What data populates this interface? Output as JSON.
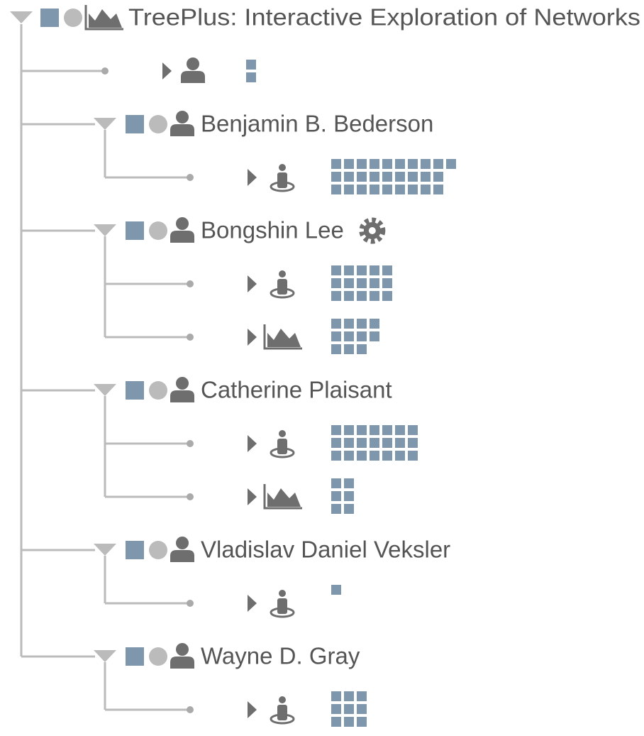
{
  "root": {
    "title": "TreePlus: Interactive Exploration of Networks",
    "icon": "chart",
    "children": [
      {
        "icon": "person",
        "count": 2
      },
      {
        "name": "Benjamin B. Bederson",
        "children": [
          {
            "icon": "pin",
            "count": 28
          }
        ]
      },
      {
        "name": "Bongshin Lee",
        "gear": true,
        "children": [
          {
            "icon": "pin",
            "count": 15
          },
          {
            "icon": "chart",
            "count": 11
          }
        ]
      },
      {
        "name": "Catherine Plaisant",
        "children": [
          {
            "icon": "pin",
            "count": 21
          },
          {
            "icon": "chart",
            "count": 6
          }
        ]
      },
      {
        "name": "Vladislav Daniel Veksler",
        "children": [
          {
            "icon": "pin",
            "count": 1
          }
        ]
      },
      {
        "name": "Wayne D. Gray",
        "children": [
          {
            "icon": "pin",
            "count": 9
          }
        ]
      }
    ]
  }
}
